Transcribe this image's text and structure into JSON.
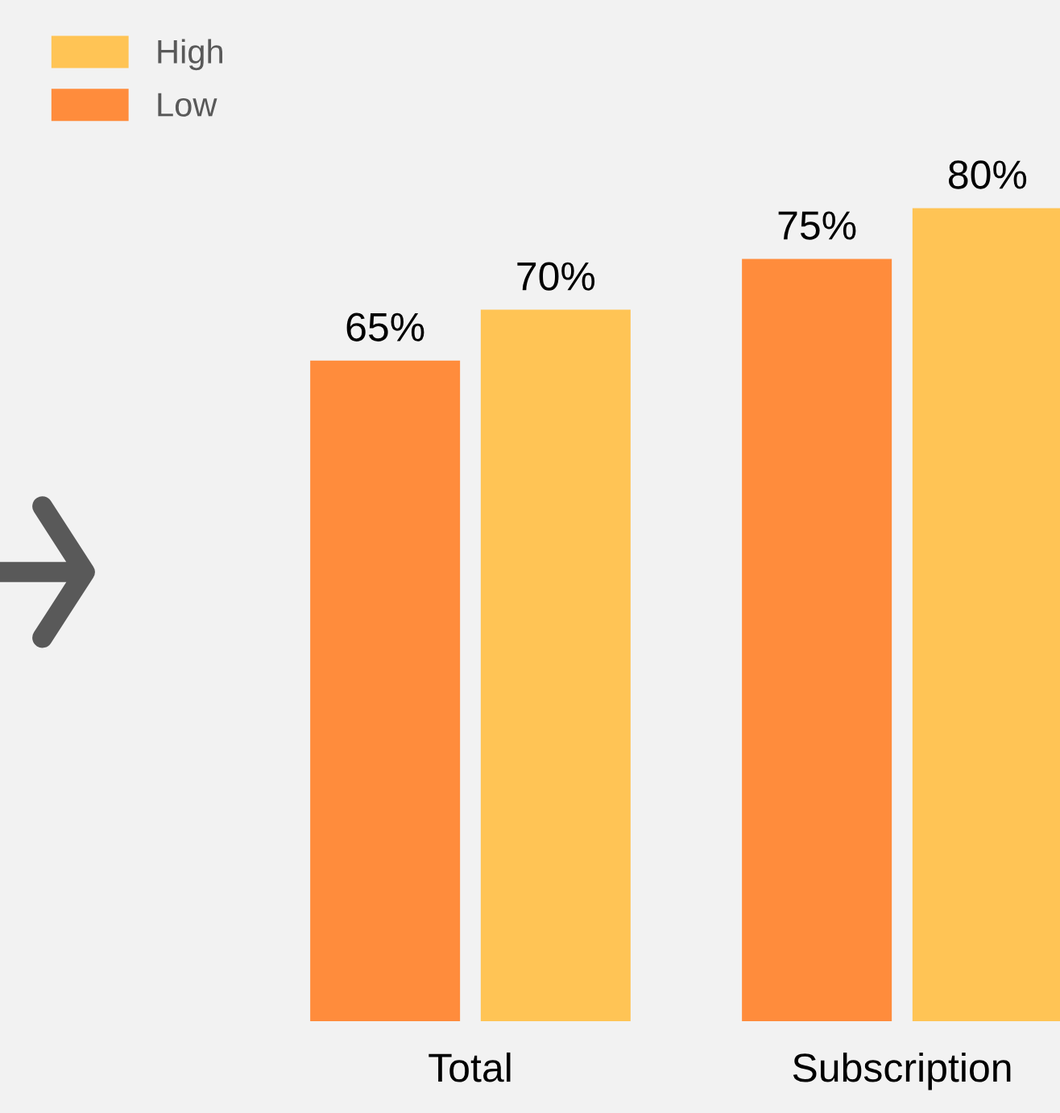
{
  "chart_data": {
    "type": "bar",
    "categories": [
      "Total",
      "Subscription"
    ],
    "series": [
      {
        "name": "Low",
        "color": "#ff8c3c",
        "values": [
          65,
          75
        ],
        "value_labels": [
          "65%",
          "75%"
        ]
      },
      {
        "name": "High",
        "color": "#ffc455",
        "values": [
          70,
          80
        ],
        "value_labels": [
          "70%",
          "80%"
        ]
      }
    ],
    "legend": "top left",
    "grid": false
  }
}
